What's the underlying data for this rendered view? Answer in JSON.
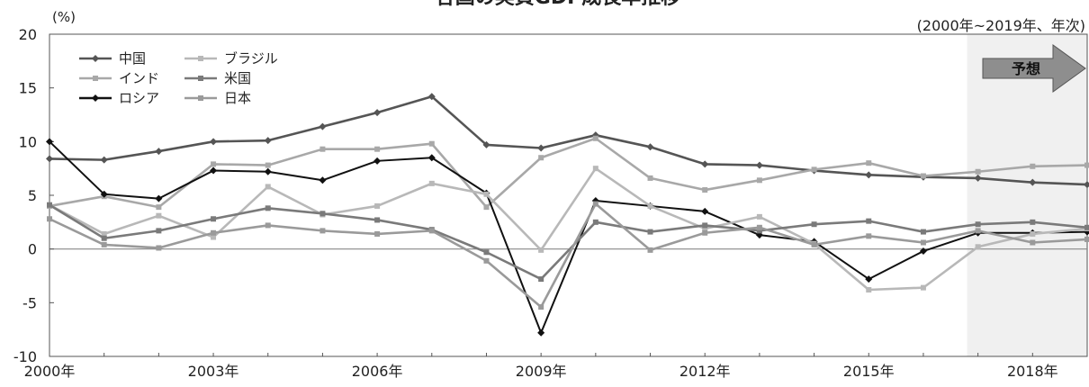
{
  "chart_data": {
    "type": "line",
    "title": "各国の実質GDP成長率推移",
    "subtitle": "(2000年~2019年、年次)",
    "y_unit": "(%)",
    "ylim": [
      -10,
      20
    ],
    "y_ticks": [
      20,
      15,
      10,
      5,
      0,
      -5,
      -10
    ],
    "x": [
      2000,
      2001,
      2002,
      2003,
      2004,
      2005,
      2006,
      2007,
      2008,
      2009,
      2010,
      2011,
      2012,
      2013,
      2014,
      2015,
      2016,
      2017,
      2018,
      2019
    ],
    "x_tick_labels": [
      "2000年",
      "2003年",
      "2006年",
      "2009年",
      "2012年",
      "2015年",
      "2018年"
    ],
    "forecast": {
      "label": "予想",
      "from_year": 2017
    },
    "grid": false,
    "legend_position": "top-left",
    "series": [
      {
        "name": "中国",
        "color": "#555555",
        "values": [
          8.4,
          8.3,
          9.1,
          10.0,
          10.1,
          11.4,
          12.7,
          14.2,
          9.7,
          9.4,
          10.6,
          9.5,
          7.9,
          7.8,
          7.3,
          6.9,
          6.7,
          6.6,
          6.2,
          6.0
        ]
      },
      {
        "name": "インド",
        "color": "#a8a8a8",
        "values": [
          4.0,
          4.9,
          3.9,
          7.9,
          7.8,
          9.3,
          9.3,
          9.8,
          3.9,
          8.5,
          10.3,
          6.6,
          5.5,
          6.4,
          7.4,
          8.0,
          6.8,
          7.2,
          7.7,
          7.8
        ]
      },
      {
        "name": "ロシア",
        "color": "#111111",
        "values": [
          10.0,
          5.1,
          4.7,
          7.3,
          7.2,
          6.4,
          8.2,
          8.5,
          5.2,
          -7.8,
          4.5,
          4.0,
          3.5,
          1.3,
          0.7,
          -2.8,
          -0.2,
          1.5,
          1.5,
          1.6
        ]
      },
      {
        "name": "ブラジル",
        "color": "#b8b8b8",
        "values": [
          4.1,
          1.4,
          3.1,
          1.1,
          5.8,
          3.2,
          4.0,
          6.1,
          5.1,
          -0.1,
          7.5,
          4.0,
          1.9,
          3.0,
          0.5,
          -3.8,
          -3.6,
          0.2,
          1.4,
          1.9
        ]
      },
      {
        "name": "米国",
        "color": "#7a7a7a",
        "values": [
          4.1,
          1.0,
          1.7,
          2.8,
          3.8,
          3.3,
          2.7,
          1.8,
          -0.3,
          -2.8,
          2.5,
          1.6,
          2.2,
          1.7,
          2.3,
          2.6,
          1.6,
          2.3,
          2.5,
          2.0
        ]
      },
      {
        "name": "日本",
        "color": "#9a9a9a",
        "values": [
          2.8,
          0.4,
          0.1,
          1.5,
          2.2,
          1.7,
          1.4,
          1.7,
          -1.1,
          -5.4,
          4.2,
          -0.1,
          1.5,
          2.0,
          0.4,
          1.2,
          0.6,
          1.7,
          0.6,
          0.9
        ]
      }
    ]
  }
}
